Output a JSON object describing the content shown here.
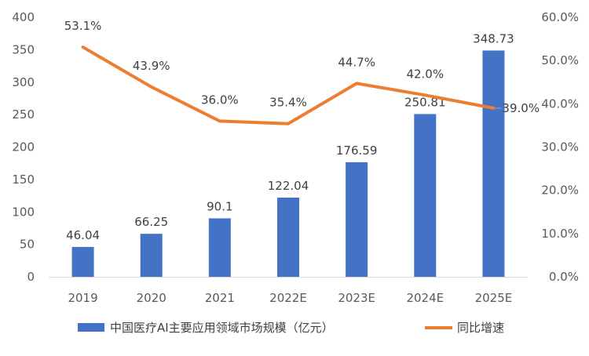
{
  "chart_data": {
    "type": "bar",
    "categories": [
      "2019",
      "2020",
      "2021",
      "2022E",
      "2023E",
      "2024E",
      "2025E"
    ],
    "series": [
      {
        "name": "中国医疗AI主要应用领域市场规模（亿元）",
        "type": "bar",
        "axis": "left",
        "color": "#4472C4",
        "values": [
          46.04,
          66.25,
          90.1,
          122.04,
          176.59,
          250.81,
          348.73
        ],
        "labels": [
          "46.04",
          "66.25",
          "90.1",
          "122.04",
          "176.59",
          "250.81",
          "348.73"
        ]
      },
      {
        "name": "同比增速",
        "type": "line",
        "axis": "right",
        "color": "#ED7D31",
        "values": [
          53.1,
          43.9,
          36.0,
          35.4,
          44.7,
          42.0,
          39.0
        ],
        "labels": [
          "53.1%",
          "43.9%",
          "36.0%",
          "35.4%",
          "44.7%",
          "42.0%",
          "39.0%"
        ]
      }
    ],
    "y_left": {
      "ylim": [
        0,
        400
      ],
      "ticks": [
        0,
        50,
        100,
        150,
        200,
        250,
        300,
        350,
        400
      ],
      "tick_labels": [
        "0",
        "50",
        "100",
        "150",
        "200",
        "250",
        "300",
        "350",
        "400"
      ]
    },
    "y_right": {
      "ylim": [
        0,
        60
      ],
      "ticks": [
        0,
        10,
        20,
        30,
        40,
        50,
        60
      ],
      "tick_labels": [
        "0.0%",
        "10.0%",
        "20.0%",
        "30.0%",
        "40.0%",
        "50.0%",
        "60.0%"
      ]
    },
    "grid": false,
    "legend_position": "bottom"
  }
}
